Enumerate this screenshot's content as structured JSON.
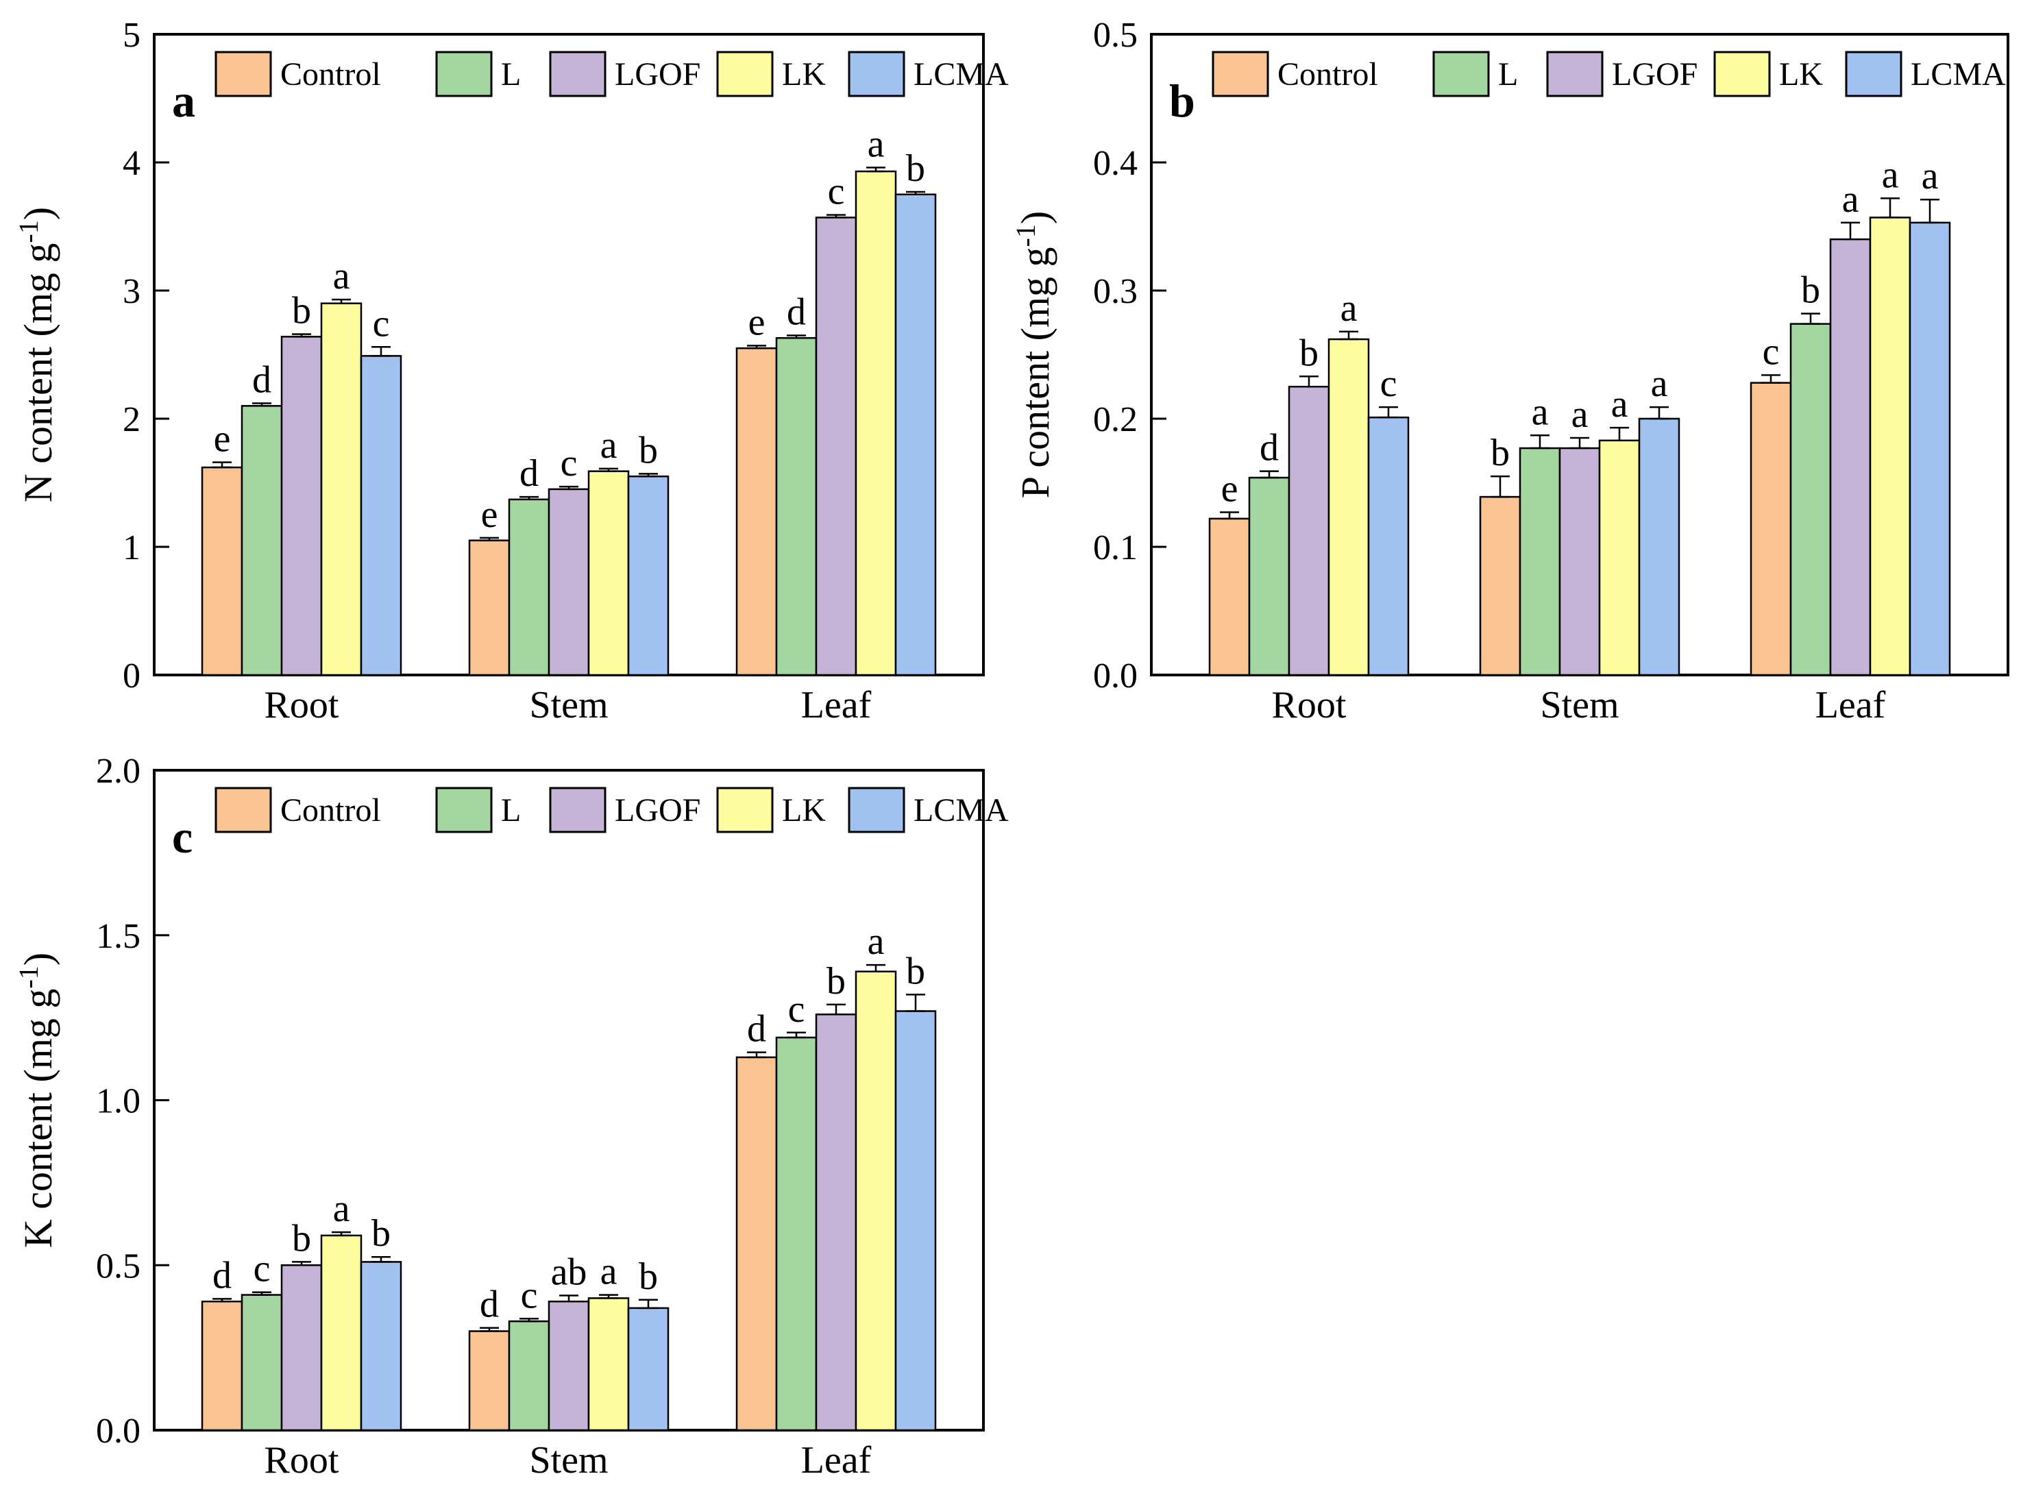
{
  "chart_data": [
    {
      "type": "bar",
      "panel_label": "a",
      "title": "",
      "xlabel": "",
      "ylabel": "N content (mg g⁻¹)",
      "ylim": [
        0,
        5
      ],
      "ytick_values": [
        0,
        1,
        2,
        3,
        4,
        5
      ],
      "ytick_labels": [
        "0",
        "1",
        "2",
        "3",
        "4",
        "5"
      ],
      "categories": [
        "Root",
        "Stem",
        "Leaf"
      ],
      "grid": false,
      "legend_position": "top-inside",
      "series": [
        {
          "name": "Control",
          "color": "#FAC392",
          "values": [
            1.62,
            1.05,
            2.55
          ],
          "errors": [
            0.04,
            0.02,
            0.02
          ],
          "sig_letters": [
            "e",
            "e",
            "e"
          ]
        },
        {
          "name": "L",
          "color": "#A3D6A0",
          "values": [
            2.1,
            1.37,
            2.63
          ],
          "errors": [
            0.02,
            0.02,
            0.02
          ],
          "sig_letters": [
            "d",
            "d",
            "d"
          ]
        },
        {
          "name": "LGOF",
          "color": "#C6B3D8",
          "values": [
            2.64,
            1.45,
            3.57
          ],
          "errors": [
            0.02,
            0.02,
            0.02
          ],
          "sig_letters": [
            "b",
            "c",
            "c"
          ]
        },
        {
          "name": "LK",
          "color": "#FDFD9F",
          "values": [
            2.9,
            1.59,
            3.93
          ],
          "errors": [
            0.03,
            0.02,
            0.03
          ],
          "sig_letters": [
            "a",
            "a",
            "a"
          ]
        },
        {
          "name": "LCMA",
          "color": "#A1C2F1",
          "values": [
            2.49,
            1.55,
            3.75
          ],
          "errors": [
            0.07,
            0.02,
            0.02
          ],
          "sig_letters": [
            "c",
            "b",
            "b"
          ]
        }
      ]
    },
    {
      "type": "bar",
      "panel_label": "b",
      "title": "",
      "xlabel": "",
      "ylabel": "P content (mg g⁻¹)",
      "ylim": [
        0,
        0.5
      ],
      "ytick_values": [
        0,
        0.1,
        0.2,
        0.3,
        0.4,
        0.5
      ],
      "ytick_labels": [
        "0.0",
        "0.1",
        "0.2",
        "0.3",
        "0.4",
        "0.5"
      ],
      "categories": [
        "Root",
        "Stem",
        "Leaf"
      ],
      "grid": false,
      "legend_position": "top-inside",
      "series": [
        {
          "name": "Control",
          "color": "#FAC392",
          "values": [
            0.122,
            0.139,
            0.228
          ],
          "errors": [
            0.005,
            0.016,
            0.006
          ],
          "sig_letters": [
            "e",
            "b",
            "c"
          ]
        },
        {
          "name": "L",
          "color": "#A3D6A0",
          "values": [
            0.154,
            0.177,
            0.274
          ],
          "errors": [
            0.005,
            0.01,
            0.008
          ],
          "sig_letters": [
            "d",
            "a",
            "b"
          ]
        },
        {
          "name": "LGOF",
          "color": "#C6B3D8",
          "values": [
            0.225,
            0.177,
            0.34
          ],
          "errors": [
            0.008,
            0.008,
            0.013
          ],
          "sig_letters": [
            "b",
            "a",
            "a"
          ]
        },
        {
          "name": "LK",
          "color": "#FDFD9F",
          "values": [
            0.262,
            0.183,
            0.357
          ],
          "errors": [
            0.006,
            0.01,
            0.015
          ],
          "sig_letters": [
            "a",
            "a",
            "a"
          ]
        },
        {
          "name": "LCMA",
          "color": "#A1C2F1",
          "values": [
            0.201,
            0.2,
            0.353
          ],
          "errors": [
            0.008,
            0.009,
            0.018
          ],
          "sig_letters": [
            "c",
            "a",
            "a"
          ]
        }
      ]
    },
    {
      "type": "bar",
      "panel_label": "c",
      "title": "",
      "xlabel": "",
      "ylabel": "K content (mg g⁻¹)",
      "ylim": [
        0,
        2.0
      ],
      "ytick_values": [
        0,
        0.5,
        1.0,
        1.5,
        2.0
      ],
      "ytick_labels": [
        "0.0",
        "0.5",
        "1.0",
        "1.5",
        "2.0"
      ],
      "categories": [
        "Root",
        "Stem",
        "Leaf"
      ],
      "grid": false,
      "legend_position": "top-inside",
      "series": [
        {
          "name": "Control",
          "color": "#FAC392",
          "values": [
            0.39,
            0.3,
            1.13
          ],
          "errors": [
            0.008,
            0.01,
            0.015
          ],
          "sig_letters": [
            "d",
            "d",
            "d"
          ]
        },
        {
          "name": "L",
          "color": "#A3D6A0",
          "values": [
            0.41,
            0.33,
            1.19
          ],
          "errors": [
            0.008,
            0.008,
            0.015
          ],
          "sig_letters": [
            "c",
            "c",
            "c"
          ]
        },
        {
          "name": "LGOF",
          "color": "#C6B3D8",
          "values": [
            0.5,
            0.39,
            1.26
          ],
          "errors": [
            0.01,
            0.018,
            0.03
          ],
          "sig_letters": [
            "b",
            "ab",
            "b"
          ]
        },
        {
          "name": "LK",
          "color": "#FDFD9F",
          "values": [
            0.59,
            0.4,
            1.39
          ],
          "errors": [
            0.01,
            0.01,
            0.02
          ],
          "sig_letters": [
            "a",
            "a",
            "a"
          ]
        },
        {
          "name": "LCMA",
          "color": "#A1C2F1",
          "values": [
            0.51,
            0.37,
            1.27
          ],
          "errors": [
            0.015,
            0.025,
            0.05
          ],
          "sig_letters": [
            "b",
            "b",
            "b"
          ]
        }
      ]
    }
  ],
  "legend_labels": [
    "Control",
    "L",
    "LGOF",
    "LK",
    "LCMA"
  ],
  "colors": {
    "Control": "#FAC392",
    "L": "#A3D6A0",
    "LGOF": "#C6B3D8",
    "LK": "#FDFD9F",
    "LCMA": "#A1C2F1",
    "bar_border": "#000000",
    "axis": "#000000",
    "background": "#FFFFFF"
  }
}
